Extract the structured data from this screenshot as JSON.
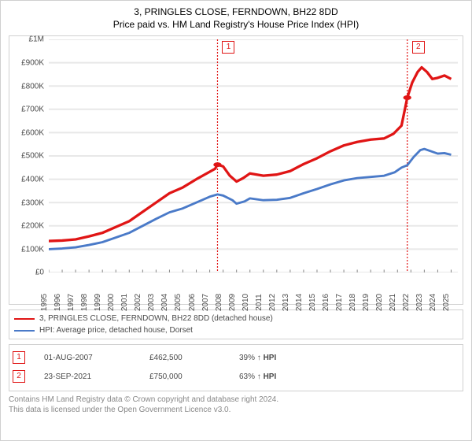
{
  "title": {
    "line1": "3, PRINGLES CLOSE, FERNDOWN, BH22 8DD",
    "line2": "Price paid vs. HM Land Registry's House Price Index (HPI)",
    "fontsize": 12,
    "color": "#3a3a3a"
  },
  "chart": {
    "type": "line",
    "background_color": "#ffffff",
    "border_color": "#d0d0d0",
    "x": {
      "min": 1995,
      "max": 2025.5,
      "tick_start": 1995,
      "tick_end": 2025,
      "tick_step": 1,
      "label_fontsize": 10,
      "label_color": "#4a4a4a",
      "rotation": -90
    },
    "y": {
      "min": 0,
      "max": 1000000,
      "tick_step": 100000,
      "label_fontsize": 10,
      "label_color": "#4a4a4a",
      "tick_labels": [
        "£0",
        "£100K",
        "£200K",
        "£300K",
        "£400K",
        "£500K",
        "£600K",
        "£700K",
        "£800K",
        "£900K",
        "£1M"
      ]
    },
    "grid": {
      "horizontal": true,
      "color": "#e8e8e8",
      "width": 1
    },
    "series": [
      {
        "name": "3, PRINGLES CLOSE, FERNDOWN, BH22 8DD (detached house)",
        "color": "#e01515",
        "width": 1.5,
        "data": [
          [
            1995,
            135000
          ],
          [
            1996,
            137000
          ],
          [
            1997,
            142000
          ],
          [
            1998,
            155000
          ],
          [
            1999,
            170000
          ],
          [
            2000,
            195000
          ],
          [
            2001,
            220000
          ],
          [
            2002,
            260000
          ],
          [
            2003,
            300000
          ],
          [
            2004,
            340000
          ],
          [
            2005,
            365000
          ],
          [
            2006,
            400000
          ],
          [
            2007.4,
            445000
          ],
          [
            2007.58,
            462500
          ],
          [
            2008,
            455000
          ],
          [
            2008.5,
            415000
          ],
          [
            2009,
            390000
          ],
          [
            2009.5,
            405000
          ],
          [
            2010,
            425000
          ],
          [
            2011,
            415000
          ],
          [
            2012,
            420000
          ],
          [
            2013,
            435000
          ],
          [
            2014,
            465000
          ],
          [
            2015,
            490000
          ],
          [
            2016,
            520000
          ],
          [
            2017,
            545000
          ],
          [
            2018,
            560000
          ],
          [
            2019,
            570000
          ],
          [
            2020,
            575000
          ],
          [
            2020.7,
            595000
          ],
          [
            2021.3,
            630000
          ],
          [
            2021.73,
            750000
          ],
          [
            2022.1,
            815000
          ],
          [
            2022.5,
            860000
          ],
          [
            2022.8,
            880000
          ],
          [
            2023.2,
            860000
          ],
          [
            2023.6,
            830000
          ],
          [
            2024,
            835000
          ],
          [
            2024.5,
            845000
          ],
          [
            2025,
            830000
          ]
        ]
      },
      {
        "name": "HPI: Average price, detached house, Dorset",
        "color": "#4a7ac8",
        "width": 1.3,
        "data": [
          [
            1995,
            100000
          ],
          [
            1996,
            103000
          ],
          [
            1997,
            108000
          ],
          [
            1998,
            118000
          ],
          [
            1999,
            130000
          ],
          [
            2000,
            150000
          ],
          [
            2001,
            170000
          ],
          [
            2002,
            200000
          ],
          [
            2003,
            230000
          ],
          [
            2004,
            258000
          ],
          [
            2005,
            275000
          ],
          [
            2006,
            300000
          ],
          [
            2007,
            325000
          ],
          [
            2007.58,
            335000
          ],
          [
            2008,
            330000
          ],
          [
            2008.7,
            310000
          ],
          [
            2009,
            295000
          ],
          [
            2009.6,
            305000
          ],
          [
            2010,
            318000
          ],
          [
            2011,
            310000
          ],
          [
            2012,
            312000
          ],
          [
            2013,
            320000
          ],
          [
            2014,
            340000
          ],
          [
            2015,
            358000
          ],
          [
            2016,
            378000
          ],
          [
            2017,
            395000
          ],
          [
            2018,
            405000
          ],
          [
            2019,
            410000
          ],
          [
            2020,
            415000
          ],
          [
            2020.8,
            430000
          ],
          [
            2021.3,
            450000
          ],
          [
            2021.73,
            460000
          ],
          [
            2022.2,
            495000
          ],
          [
            2022.7,
            525000
          ],
          [
            2023,
            530000
          ],
          [
            2023.5,
            520000
          ],
          [
            2024,
            510000
          ],
          [
            2024.5,
            512000
          ],
          [
            2025,
            505000
          ]
        ]
      }
    ],
    "events": [
      {
        "label": "1",
        "x": 2007.58,
        "price": 462500,
        "date": "01-AUG-2007",
        "price_str": "£462,500",
        "pct": "39%",
        "rel": "↑ HPI",
        "color": "#e01515"
      },
      {
        "label": "2",
        "x": 2021.73,
        "price": 750000,
        "date": "23-SEP-2021",
        "price_str": "£750,000",
        "pct": "63%",
        "rel": "↑ HPI",
        "color": "#e01515"
      }
    ]
  },
  "legend": {
    "fontsize": 10,
    "color": "#4a4a4a"
  },
  "footer": {
    "line1": "Contains HM Land Registry data © Crown copyright and database right 2024.",
    "line2": "This data is licensed under the Open Government Licence v3.0.",
    "color": "#888888",
    "fontsize": 10
  }
}
